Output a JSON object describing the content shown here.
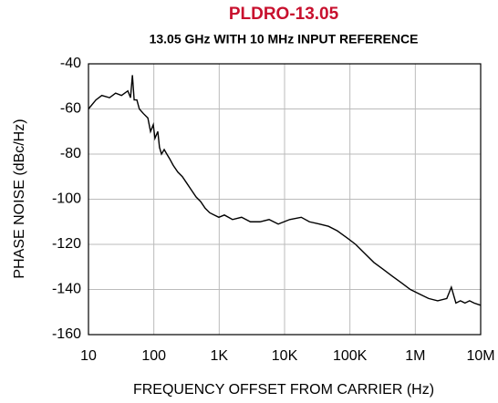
{
  "chart_data": {
    "type": "line",
    "title": "PLDRO-13.05",
    "subtitle": "13.05 GHz  WITH 10 MHz INPUT REFERENCE",
    "x_label": "FREQUENCY OFFSET FROM CARRIER (Hz)",
    "y_label": "PHASE NOISE (dBc/Hz)",
    "x_scale": "log",
    "grid": true,
    "color": "#000000",
    "title_color": "#c8102e",
    "xlim": [
      10,
      10000000
    ],
    "ylim": [
      -160,
      -40
    ],
    "xticks": [
      10,
      100,
      {
        "value": 1000,
        "label": "1K"
      },
      {
        "value": 10000,
        "label": "10K"
      },
      {
        "value": 100000,
        "label": "100K"
      },
      {
        "value": 1000000,
        "label": "1M"
      },
      {
        "value": 10000000,
        "label": "10M"
      }
    ],
    "yticks": [
      -160,
      -140,
      -120,
      -100,
      -80,
      -60,
      -40
    ],
    "x": [
      10,
      13,
      16,
      21,
      26,
      32,
      40,
      44,
      47,
      50,
      55,
      60,
      69,
      81,
      89,
      98,
      104,
      115,
      122,
      131,
      144,
      158,
      174,
      198,
      233,
      273,
      321,
      377,
      443,
      519,
      610,
      716,
      841,
      987,
      1200,
      1600,
      2200,
      3000,
      4200,
      5800,
      8000,
      12000,
      18000,
      24000,
      34000,
      47000,
      64000,
      89000,
      122000,
      168000,
      232000,
      320000,
      440000,
      610000,
      840000,
      1160000,
      1600000,
      2200000,
      3030000,
      3560000,
      4180000,
      4900000,
      5750000,
      6760000,
      7940000,
      10000000
    ],
    "values": [
      -60,
      -56,
      -54,
      -55,
      -53,
      -54,
      -52,
      -55,
      -45,
      -56,
      -56,
      -60,
      -62,
      -64,
      -70,
      -67,
      -73,
      -70,
      -77,
      -80,
      -78,
      -80,
      -82,
      -85,
      -88,
      -90,
      -93,
      -96,
      -99,
      -101,
      -104,
      -106,
      -107,
      -108,
      -107,
      -109,
      -108,
      -110,
      -110,
      -109,
      -111,
      -109,
      -108,
      -110,
      -111,
      -112,
      -114,
      -117,
      -120,
      -124,
      -128,
      -131,
      -134,
      -137,
      -140,
      -142,
      -144,
      -145,
      -144,
      -139,
      -146,
      -145,
      -146,
      -145,
      -146,
      -147
    ]
  }
}
